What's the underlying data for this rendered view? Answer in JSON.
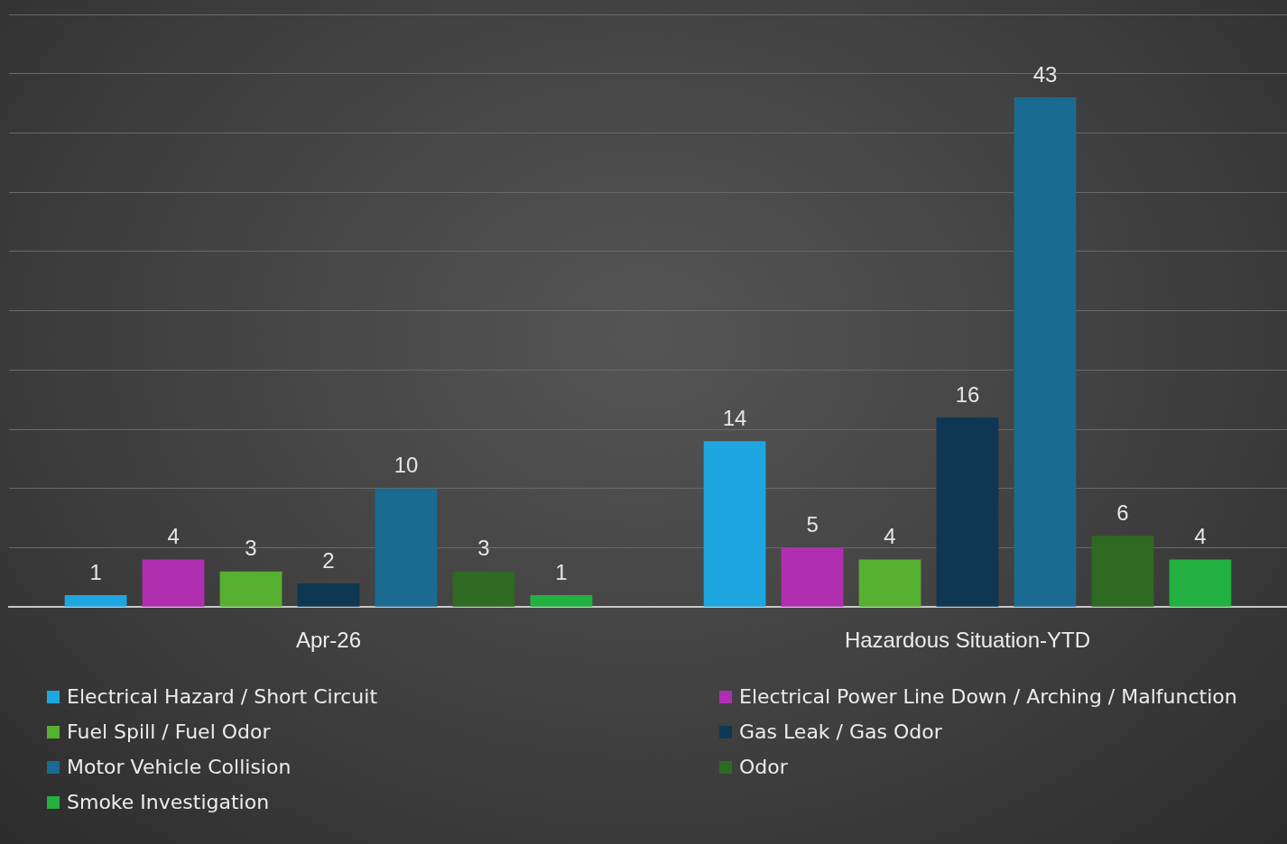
{
  "chart_data": {
    "type": "bar",
    "categories": [
      "Apr-26",
      "Hazardous Situation-YTD"
    ],
    "series": [
      {
        "name": "Electrical Hazard / Short Circuit",
        "color": "#1ea6e0",
        "values": [
          1,
          14
        ]
      },
      {
        "name": "Electrical Power Line Down / Arching / Malfunction",
        "color": "#b02fb0",
        "values": [
          4,
          5
        ]
      },
      {
        "name": "Fuel Spill / Fuel Odor",
        "color": "#58b030",
        "values": [
          3,
          4
        ]
      },
      {
        "name": "Gas Leak / Gas Odor",
        "color": "#0e3852",
        "values": [
          2,
          16
        ]
      },
      {
        "name": "Motor Vehicle Collision",
        "color": "#1b6a92",
        "values": [
          10,
          43
        ]
      },
      {
        "name": "Odor",
        "color": "#2e6a22",
        "values": [
          3,
          6
        ]
      },
      {
        "name": "Smoke Investigation",
        "color": "#22b040",
        "values": [
          1,
          4
        ]
      }
    ],
    "ylim": [
      0,
      50
    ],
    "yticks": [
      {
        "value": 0,
        "label": null
      },
      {
        "value": 5,
        "label": null
      },
      {
        "value": 10,
        "label": null
      },
      {
        "value": 15,
        "label": null
      },
      {
        "value": 20,
        "label": null
      },
      {
        "value": 25,
        "label": null
      },
      {
        "value": 30,
        "label": null
      },
      {
        "value": 35,
        "label": null
      },
      {
        "value": 40,
        "label": null
      },
      {
        "value": 45,
        "label": null
      },
      {
        "value": 50,
        "label": null
      }
    ],
    "grid": "y",
    "tick_labels": "x",
    "data_labels": true,
    "legend": "bottom"
  }
}
